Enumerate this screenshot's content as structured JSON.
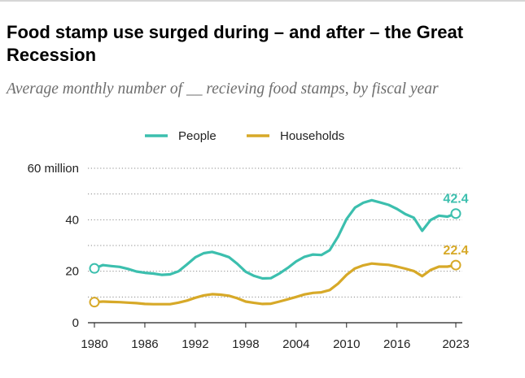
{
  "header": {
    "title": "Food stamp use surged during – and after – the Great Recession",
    "subtitle": "Average monthly number of __ recieving food stamps, by fiscal year"
  },
  "colors": {
    "people": "#3cbfae",
    "households": "#d7a928",
    "grid": "#8a8a8a",
    "axis": "#222222"
  },
  "chart_data": {
    "type": "line",
    "title": "Food stamp use surged during – and after – the Great Recession",
    "subtitle": "Average monthly number of __ recieving food stamps, by fiscal year",
    "xlabel": "",
    "ylabel": "",
    "x": [
      1980,
      1981,
      1982,
      1983,
      1984,
      1985,
      1986,
      1987,
      1988,
      1989,
      1990,
      1991,
      1992,
      1993,
      1994,
      1995,
      1996,
      1997,
      1998,
      1999,
      2000,
      2001,
      2002,
      2003,
      2004,
      2005,
      2006,
      2007,
      2008,
      2009,
      2010,
      2011,
      2012,
      2013,
      2014,
      2015,
      2016,
      2017,
      2018,
      2019,
      2020,
      2021,
      2022,
      2023
    ],
    "xticks": [
      1980,
      1986,
      1992,
      1998,
      2004,
      2010,
      2016,
      2023
    ],
    "xtick_labels": [
      "1980",
      "1986",
      "1992",
      "1998",
      "2004",
      "2010",
      "2016",
      "2023"
    ],
    "ylim": [
      0,
      60
    ],
    "yticks": [
      0,
      20,
      40,
      60
    ],
    "ytick_labels": [
      "0",
      "20",
      "40",
      "60 million"
    ],
    "grid": true,
    "legend_position": "top",
    "series": [
      {
        "name": "People",
        "color": "#3cbfae",
        "values": [
          21.1,
          22.4,
          22.0,
          21.7,
          20.9,
          19.9,
          19.4,
          19.1,
          18.6,
          18.8,
          20.0,
          22.6,
          25.4,
          27.0,
          27.5,
          26.6,
          25.5,
          22.9,
          19.8,
          18.2,
          17.2,
          17.3,
          19.1,
          21.3,
          23.8,
          25.6,
          26.5,
          26.3,
          28.2,
          33.5,
          40.3,
          44.7,
          46.6,
          47.6,
          46.7,
          45.8,
          44.2,
          42.2,
          40.8,
          35.7,
          39.9,
          41.6,
          41.2,
          42.4
        ],
        "end_label": "42.4"
      },
      {
        "name": "Households",
        "color": "#d7a928",
        "values": [
          8.0,
          8.2,
          8.1,
          8.0,
          7.8,
          7.6,
          7.3,
          7.2,
          7.2,
          7.2,
          7.8,
          8.6,
          9.7,
          10.6,
          11.1,
          10.9,
          10.5,
          9.5,
          8.2,
          7.7,
          7.3,
          7.4,
          8.2,
          9.1,
          10.0,
          11.0,
          11.6,
          11.8,
          12.7,
          15.2,
          18.6,
          21.1,
          22.3,
          23.0,
          22.7,
          22.5,
          21.8,
          21.0,
          20.1,
          18.1,
          20.5,
          21.8,
          21.8,
          22.4
        ],
        "end_label": "22.4"
      }
    ]
  }
}
